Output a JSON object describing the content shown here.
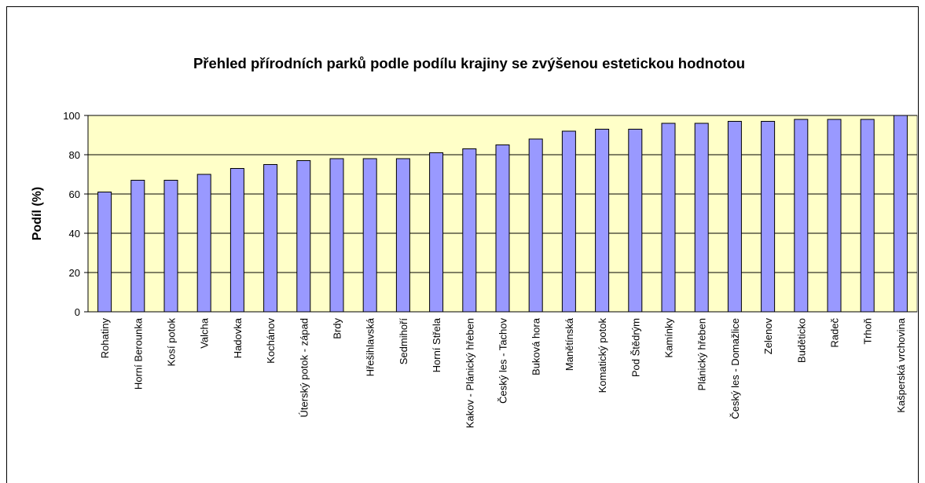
{
  "chart_data": {
    "type": "bar",
    "title": "Přehled přírodních parků podle podílu krajiny se zvýšenou estetickou hodnotou",
    "ylabel": "Podíl (%)",
    "categories": [
      "Rohatiny",
      "Horní Berounka",
      "Kosí potok",
      "Valcha",
      "Hadovka",
      "Kochánov",
      "Úterský potok - západ",
      "Brdy",
      "Hřešihlavská",
      "Sedmihoří",
      "Horní Střela",
      "Kakov - Plánický hřeben",
      "Český les - Tachov",
      "Buková hora",
      "Manětínská",
      "Komatický potok",
      "Pod Štědrým",
      "Kamínky",
      "Plánický hřeben",
      "Český les - Domažlice",
      "Zelenov",
      "Buděticko",
      "Radeč",
      "Trhoň",
      "Kašperská vrchovina"
    ],
    "values": [
      61,
      67,
      67,
      70,
      73,
      75,
      77,
      78,
      78,
      78,
      81,
      83,
      85,
      88,
      92,
      93,
      93,
      96,
      96,
      97,
      97,
      98,
      98,
      98,
      100
    ],
    "color": "#9999ff",
    "ylim": [
      0,
      100
    ],
    "yticks": [
      0,
      20,
      40,
      60,
      80,
      100
    ],
    "grid": true
  }
}
